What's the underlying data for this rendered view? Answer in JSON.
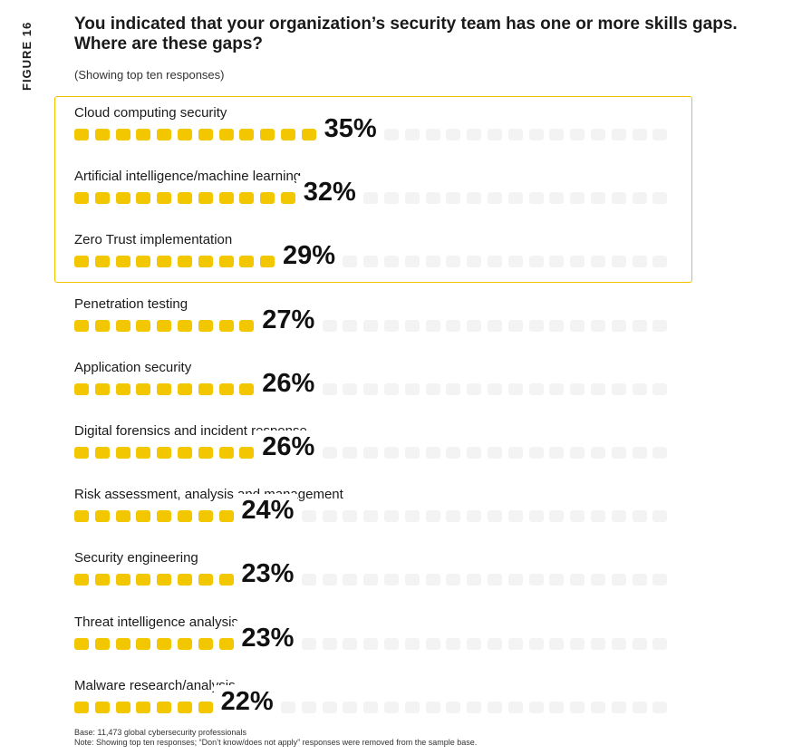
{
  "figure_label": "FIGURE 16",
  "subtitle": "(Showing top ten responses)",
  "colors": {
    "filled": "#f2c700",
    "empty": "#f3f3f3",
    "highlight_border": "#f2c200"
  },
  "chart_data": {
    "type": "bar",
    "title": "You indicated that your organization’s security team has one or more skills gaps. Where are these gaps?",
    "unit": "%",
    "ylim": [
      0,
      100
    ],
    "highlighted_top": 3,
    "categories": [
      "Cloud computing security",
      "Artificial intelligence/machine learning",
      "Zero Trust implementation",
      "Penetration testing",
      "Application security",
      "Digital forensics and incident response",
      "Risk assessment, analysis and management",
      "Security engineering",
      "Threat intelligence analysis",
      "Malware research/analysis"
    ],
    "values": [
      35,
      32,
      29,
      27,
      26,
      26,
      24,
      23,
      23,
      22
    ],
    "value_labels": [
      "35%",
      "32%",
      "29%",
      "27%",
      "26%",
      "26%",
      "24%",
      "23%",
      "23%",
      "22%"
    ]
  },
  "footnotes": [
    "Base: 11,473 global cybersecurity professionals",
    "Note: Showing top ten responses; “Don’t know/does not apply” responses were removed from the sample base."
  ]
}
